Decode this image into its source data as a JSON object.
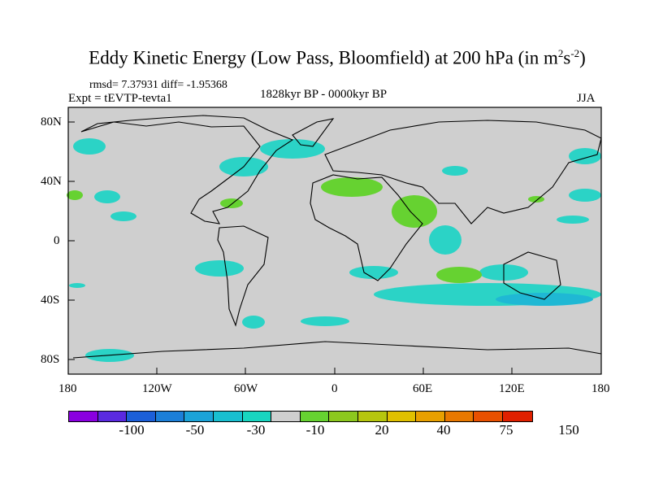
{
  "title": "Eddy Kinetic Energy (Low Pass, Bloomfield) at 200 hPa (in m",
  "title_unit_m_exp": "2",
  "title_unit_s": "s",
  "title_unit_s_exp": "-2",
  "title_close": ")",
  "stats": "rmsd= 7.37931 diff= -1.95368",
  "experiment": "Expt = tEVTP-tevta1",
  "period": "1828kyr BP - 0000kyr BP",
  "season": "JJA",
  "lat_ticks": [
    "80N",
    "40N",
    "0",
    "40S",
    "80S"
  ],
  "lon_ticks": [
    "180",
    "120W",
    "60W",
    "0",
    "60E",
    "120E",
    "180"
  ],
  "colorbar": {
    "colors": [
      "#8a00e0",
      "#5a2ae0",
      "#1c5fd8",
      "#1c7fd8",
      "#1ba3d8",
      "#18bfd0",
      "#18d6c0",
      "#cfcfcf",
      "#66d231",
      "#8cc81e",
      "#b6c60e",
      "#e0c000",
      "#e8a000",
      "#e87800",
      "#e85000",
      "#e02000"
    ],
    "labels": [
      "-100",
      "-50",
      "-30",
      "-10",
      "20",
      "40",
      "75",
      "150"
    ]
  },
  "colors": {
    "land_bg": "#cfcfcf",
    "negative": "#2bd3c6",
    "negative_strong": "#1fb8d4",
    "positive": "#66d231"
  }
}
